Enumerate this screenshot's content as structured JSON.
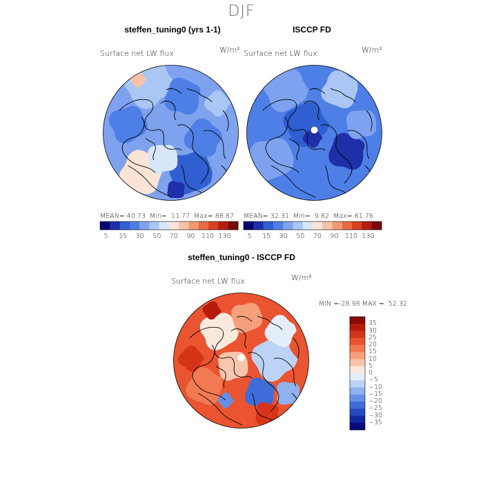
{
  "main_title": "DJF",
  "chart_data": [
    {
      "type": "heatmap",
      "title": "steffen_tuning0 (yrs 1-1)",
      "variable": "Surface net LW flux",
      "units": "W/m²",
      "projection": "polar stereographic (north)",
      "stats": {
        "mean_label": "MEAN=",
        "mean": "40.73",
        "min_label": "Min=",
        "min": "11.77",
        "max_label": "Max=",
        "max": "88.87"
      },
      "colorbar": {
        "ticks": [
          "5",
          "15",
          "30",
          "50",
          "70",
          "90",
          "110",
          "130"
        ],
        "colors": [
          "#080470",
          "#1f2fa8",
          "#2f5fd0",
          "#4d7fe6",
          "#7ea2ee",
          "#aac6f4",
          "#d8e6fa",
          "#fbe4d6",
          "#f7c3a8",
          "#f19a74",
          "#e86a42",
          "#d8401e",
          "#b32010",
          "#7a0a08"
        ]
      }
    },
    {
      "type": "heatmap",
      "title": "ISCCP FD",
      "variable": "Surface net LW flux",
      "units": "W/m²",
      "projection": "polar stereographic (north)",
      "stats": {
        "mean_label": "MEAN=",
        "mean": "32.31",
        "min_label": "Min=",
        "min": "9.82",
        "max_label": "Max=",
        "max": "61.76"
      },
      "colorbar": {
        "ticks": [
          "5",
          "15",
          "30",
          "50",
          "70",
          "90",
          "110",
          "130"
        ],
        "colors": [
          "#080470",
          "#1f2fa8",
          "#2f5fd0",
          "#4d7fe6",
          "#7ea2ee",
          "#aac6f4",
          "#d8e6fa",
          "#fbe4d6",
          "#f7c3a8",
          "#f19a74",
          "#e86a42",
          "#d8401e",
          "#b32010",
          "#7a0a08"
        ]
      }
    },
    {
      "type": "heatmap",
      "title": "steffen_tuning0 - ISCCP FD",
      "variable": "Surface net LW flux",
      "units": "W/m²",
      "projection": "polar stereographic (north)",
      "stats": {
        "min_label": "MIN =",
        "min": "-28.98",
        "max_label": "MAX =",
        "max": "52.32"
      },
      "colorbar": {
        "ticks": [
          "35",
          "30",
          "25",
          "20",
          "15",
          "10",
          "5",
          "0",
          "−5",
          "−10",
          "−15",
          "−20",
          "−25",
          "−30",
          "−35"
        ],
        "colors": [
          "#8a0a06",
          "#b51a0c",
          "#d63418",
          "#ea5430",
          "#f27a52",
          "#f6a07c",
          "#f8c6ac",
          "#fce9de",
          "#e4eefb",
          "#bcd2f6",
          "#8fb2ee",
          "#6690e4",
          "#3f6cd8",
          "#2448c0",
          "#1228a0",
          "#080a78"
        ]
      }
    }
  ]
}
